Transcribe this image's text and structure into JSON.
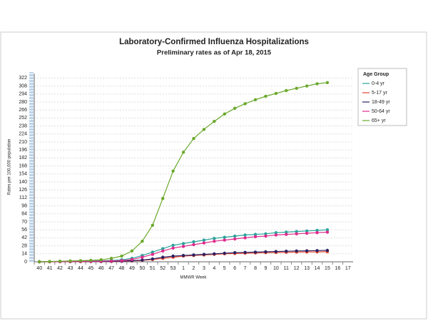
{
  "chart_data": {
    "type": "line",
    "title": "Laboratory-Confirmed Influenza Hospitalizations",
    "subtitle": "Preliminary rates as of Apr 18, 2015",
    "x_label": "MMWR Week",
    "y_label": "Rates per 100,000 population",
    "legend_title": "Age Group",
    "legend_position": "right",
    "grid": true,
    "categories": [
      "40",
      "41",
      "42",
      "43",
      "44",
      "45",
      "46",
      "47",
      "48",
      "49",
      "50",
      "51",
      "52",
      "53",
      "1",
      "2",
      "3",
      "4",
      "5",
      "6",
      "7",
      "8",
      "9",
      "10",
      "11",
      "12",
      "13",
      "14",
      "15",
      "16",
      "17"
    ],
    "ylim": [
      0,
      330
    ],
    "yticks": [
      0,
      14,
      28,
      42,
      56,
      70,
      84,
      98,
      112,
      126,
      140,
      154,
      168,
      182,
      196,
      210,
      224,
      238,
      252,
      266,
      280,
      294,
      308,
      322
    ],
    "series": [
      {
        "name": "0-4 yr",
        "color": "#2aa39b",
        "values": [
          0,
          0.2,
          0.5,
          0.7,
          1,
          1.3,
          1.7,
          2.3,
          3.5,
          6,
          11,
          17,
          23,
          29,
          32,
          35,
          38,
          41,
          43,
          45,
          47,
          48,
          49,
          51,
          52,
          53,
          54,
          55,
          56,
          null,
          null
        ]
      },
      {
        "name": "5-17 yr",
        "color": "#e5432b",
        "values": [
          0,
          0,
          0.1,
          0.2,
          0.3,
          0.4,
          0.5,
          0.6,
          0.8,
          1.5,
          2.5,
          4,
          6,
          8,
          10,
          11,
          12,
          13,
          14,
          14.5,
          15,
          15.5,
          16,
          16.3,
          16.6,
          17,
          17.2,
          17.4,
          17.6,
          null,
          null
        ]
      },
      {
        "name": "18-49 yr",
        "color": "#2b2163",
        "values": [
          0,
          0.1,
          0.2,
          0.3,
          0.4,
          0.5,
          0.6,
          0.8,
          1,
          2,
          3,
          5,
          8,
          10,
          11,
          12,
          13,
          14,
          15,
          16,
          16.5,
          17,
          17.5,
          18,
          18.5,
          19,
          19.3,
          19.6,
          20,
          null,
          null
        ]
      },
      {
        "name": "50-64 yr",
        "color": "#df2a8c",
        "values": [
          0,
          0.1,
          0.3,
          0.5,
          0.7,
          0.9,
          1.1,
          1.5,
          2,
          4,
          8,
          13,
          19,
          24,
          27,
          30,
          33,
          36,
          38,
          40,
          42,
          44,
          45,
          47,
          48,
          49,
          50,
          51,
          52,
          null,
          null
        ]
      },
      {
        "name": "65+ yr",
        "color": "#6aa82c",
        "values": [
          0,
          0.5,
          1,
          1.5,
          2,
          2.5,
          3.5,
          6,
          10,
          19,
          36,
          64,
          111,
          159,
          192,
          216,
          232,
          246,
          259,
          269,
          277,
          284,
          290,
          295,
          300,
          304,
          308,
          312,
          314,
          null,
          null
        ]
      }
    ]
  }
}
